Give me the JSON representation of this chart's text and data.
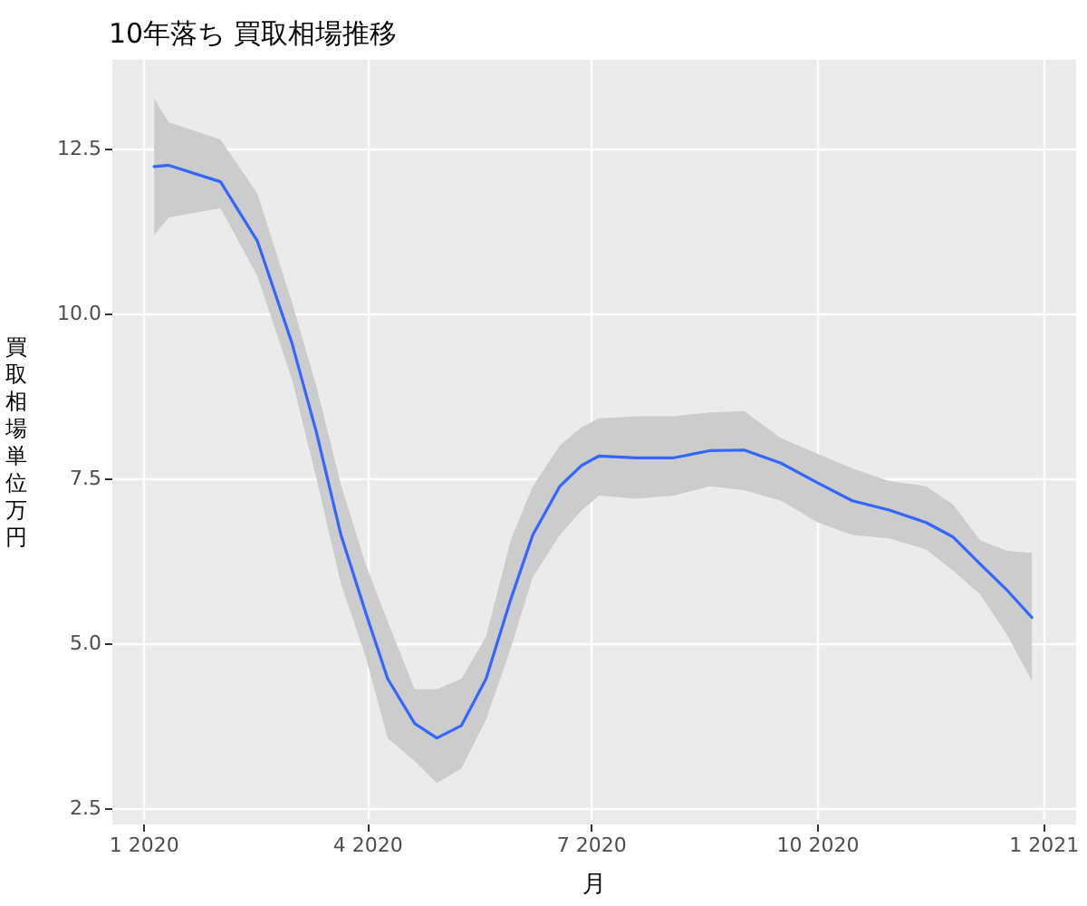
{
  "chart_data": {
    "type": "line",
    "title": "10年落ち 買取相場推移",
    "xlabel": "月",
    "ylabel": "買取相場単位万円",
    "x": [
      "2020-01-05",
      "2020-01-11",
      "2020-02-01",
      "2020-02-16",
      "2020-03-01",
      "2020-03-11",
      "2020-03-21",
      "2020-03-31",
      "2020-04-09",
      "2020-04-20",
      "2020-04-29",
      "2020-05-09",
      "2020-05-19",
      "2020-05-29",
      "2020-06-07",
      "2020-06-18",
      "2020-06-27",
      "2020-07-04",
      "2020-07-19",
      "2020-08-03",
      "2020-08-18",
      "2020-09-01",
      "2020-09-16",
      "2020-10-01",
      "2020-10-15",
      "2020-10-30",
      "2020-11-14",
      "2020-11-25",
      "2020-12-06",
      "2020-12-17",
      "2020-12-27"
    ],
    "series": [
      {
        "color": "#3366ff",
        "values": [
          12.23,
          12.25,
          12.0,
          11.1,
          9.56,
          8.2,
          6.64,
          5.47,
          4.46,
          3.78,
          3.56,
          3.75,
          4.46,
          5.66,
          6.64,
          7.38,
          7.7,
          7.84,
          7.81,
          7.81,
          7.92,
          7.93,
          7.73,
          7.43,
          7.16,
          7.02,
          6.83,
          6.61,
          6.2,
          5.8,
          5.39
        ],
        "lower": [
          11.19,
          11.46,
          11.6,
          10.57,
          9.01,
          7.5,
          5.9,
          4.8,
          3.56,
          3.21,
          2.88,
          3.1,
          3.84,
          4.92,
          6.0,
          6.64,
          7.02,
          7.24,
          7.19,
          7.24,
          7.38,
          7.32,
          7.16,
          6.83,
          6.64,
          6.59,
          6.42,
          6.1,
          5.74,
          5.12,
          4.43
        ],
        "upper": [
          13.26,
          12.9,
          12.64,
          11.82,
          10.18,
          8.9,
          7.4,
          6.2,
          5.33,
          4.3,
          4.3,
          4.46,
          5.1,
          6.56,
          7.38,
          8.0,
          8.28,
          8.41,
          8.44,
          8.44,
          8.5,
          8.52,
          8.11,
          7.87,
          7.65,
          7.46,
          7.38,
          7.1,
          6.56,
          6.4,
          6.37
        ]
      }
    ],
    "xlim": [
      "2019-12-19",
      "2021-01-14"
    ],
    "xticks": [
      {
        "value": "2020-01-01",
        "label": "1 2020"
      },
      {
        "value": "2020-04-01",
        "label": "4 2020"
      },
      {
        "value": "2020-07-01",
        "label": "7 2020"
      },
      {
        "value": "2020-10-01",
        "label": "10 2020"
      },
      {
        "value": "2021-01-01",
        "label": "1 2021"
      }
    ],
    "ylim": [
      2.25,
      13.85
    ],
    "yticks": [
      2.5,
      {
        "value": 5,
        "label": "5.0"
      },
      7.5,
      {
        "value": 10,
        "label": "10.0"
      },
      12.5
    ],
    "grid": true,
    "marker": "none",
    "line_style": "solid"
  }
}
